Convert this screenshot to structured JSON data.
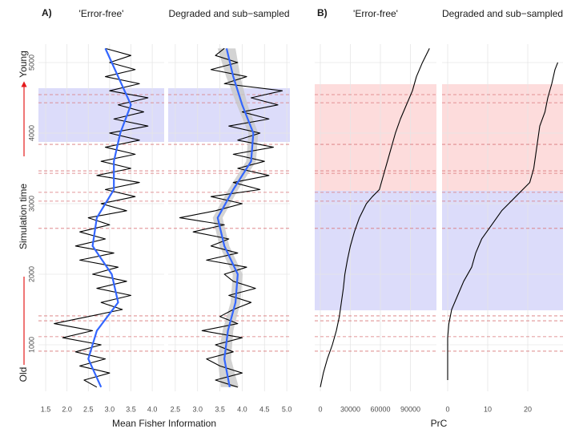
{
  "figure": {
    "panel_labels": [
      "A)",
      "B)"
    ],
    "x_labels": [
      "Mean Fisher Information",
      "PrC"
    ],
    "y_label": "Simulation time",
    "y_top": "Young",
    "y_bottom": "Old"
  },
  "chart_data": [
    {
      "type": "line",
      "title": "'Error-free'",
      "xlim": [
        1.33,
        4.28
      ],
      "xticks": [
        1.5,
        {
          "value": 2,
          "label": "2.0"
        },
        2.5,
        {
          "value": 3,
          "label": "3.0"
        },
        3.5,
        {
          "value": 4,
          "label": "4.0"
        }
      ],
      "ylim": [
        341,
        5261
      ],
      "yticks": [
        1000,
        2000,
        3000,
        4000,
        5000
      ],
      "ytick_labels": true,
      "grid": true,
      "bands": [
        {
          "from": 3875,
          "to": 4636,
          "color": "#dcdcfa"
        }
      ],
      "hlines": {
        "color": "#d9777a",
        "values": [
          4545,
          4430,
          3840,
          3465,
          3430,
          3160,
          3035,
          2650,
          1410,
          1340,
          1115,
          910
        ]
      },
      "series": [
        {
          "color": "#000000",
          "time": [
            400,
            500,
            600,
            700,
            800,
            900,
            1000,
            1100,
            1200,
            1300,
            1400,
            1500,
            1600,
            1700,
            1800,
            1900,
            2000,
            2100,
            2200,
            2300,
            2400,
            2500,
            2600,
            2700,
            2800,
            2900,
            3000,
            3100,
            3200,
            3300,
            3400,
            3500,
            3600,
            3700,
            3800,
            3900,
            4000,
            4100,
            4200,
            4300,
            4400,
            4500,
            4600,
            4700,
            4800,
            4900,
            5000,
            5100,
            5200
          ],
          "values": [
            2.7,
            2.4,
            3.0,
            2.3,
            2.9,
            2.2,
            2.8,
            1.9,
            2.6,
            1.7,
            2.5,
            3.3,
            2.8,
            3.5,
            2.7,
            3.4,
            2.6,
            3.2,
            2.3,
            3.1,
            2.2,
            2.9,
            2.3,
            3.0,
            2.5,
            3.4,
            2.8,
            3.6,
            2.9,
            3.7,
            2.7,
            3.5,
            2.8,
            3.6,
            2.9,
            3.7,
            3.0,
            3.9,
            3.1,
            3.8,
            3.2,
            3.9,
            3.0,
            3.7,
            2.9,
            3.6,
            3.0,
            3.5,
            2.9
          ]
        },
        {
          "color": "#3366ff",
          "time": [
            400,
            800,
            1200,
            1600,
            2000,
            2400,
            2800,
            3200,
            3600,
            4000,
            4400,
            4800,
            5200
          ],
          "values": [
            2.8,
            2.5,
            2.7,
            3.2,
            3.05,
            2.6,
            2.7,
            3.1,
            3.1,
            3.25,
            3.5,
            3.2,
            2.9
          ]
        }
      ]
    },
    {
      "type": "line",
      "title": "Degraded and sub−sampled",
      "xlim": [
        2.34,
        5.07
      ],
      "xticks": [
        2.5,
        {
          "value": 3,
          "label": "3.0"
        },
        3.5,
        {
          "value": 4,
          "label": "4.0"
        },
        4.5,
        {
          "value": 5,
          "label": "5.0"
        }
      ],
      "ylim": [
        341,
        5261
      ],
      "yticks": [
        1000,
        2000,
        3000,
        4000,
        5000
      ],
      "ytick_labels": false,
      "grid": true,
      "bands": [
        {
          "from": 3875,
          "to": 4636,
          "color": "#dcdcfa"
        }
      ],
      "hlines": {
        "color": "#d9777a",
        "values": [
          4545,
          4430,
          3840,
          3465,
          3430,
          3160,
          3035,
          2650,
          1410,
          1340,
          1115,
          910
        ]
      },
      "series": [
        {
          "color": "#c8c8c8",
          "time": [
            400,
            800,
            1200,
            1600,
            2000,
            2400,
            2800,
            3200,
            3600,
            4000,
            4400,
            4800,
            5200
          ],
          "lower": [
            3.52,
            3.45,
            3.56,
            3.74,
            3.79,
            3.49,
            3.34,
            3.69,
            4.09,
            4.14,
            3.88,
            3.64,
            3.45
          ],
          "upper": [
            3.92,
            3.75,
            3.8,
            3.96,
            4.01,
            3.71,
            3.56,
            3.91,
            4.31,
            4.36,
            4.12,
            3.96,
            3.85
          ]
        },
        {
          "color": "#000000",
          "time": [
            400,
            500,
            600,
            700,
            800,
            900,
            1000,
            1100,
            1200,
            1300,
            1400,
            1500,
            1600,
            1700,
            1800,
            1900,
            2000,
            2100,
            2200,
            2300,
            2400,
            2500,
            2600,
            2700,
            2800,
            2900,
            3000,
            3100,
            3200,
            3300,
            3400,
            3500,
            3600,
            3700,
            3800,
            3900,
            4000,
            4100,
            4200,
            4300,
            4400,
            4500,
            4600,
            4700,
            4800,
            4900,
            5000,
            5100,
            5200
          ],
          "values": [
            3.9,
            3.4,
            4.0,
            3.5,
            3.2,
            3.8,
            3.4,
            4.0,
            3.1,
            3.9,
            3.5,
            3.8,
            4.2,
            3.7,
            4.3,
            3.8,
            3.6,
            4.1,
            3.2,
            3.9,
            3.3,
            3.7,
            2.9,
            3.6,
            2.6,
            3.4,
            4.0,
            3.3,
            4.4,
            3.8,
            4.6,
            3.9,
            4.5,
            3.8,
            4.7,
            3.9,
            4.4,
            3.7,
            4.6,
            4.0,
            4.8,
            4.2,
            4.9,
            3.6,
            4.1,
            3.3,
            3.9,
            3.4,
            3.6
          ]
        },
        {
          "color": "#3366ff",
          "time": [
            400,
            800,
            1200,
            1600,
            2000,
            2400,
            2800,
            3200,
            3600,
            4000,
            4400,
            4800,
            5200
          ],
          "values": [
            3.72,
            3.6,
            3.68,
            3.85,
            3.9,
            3.6,
            3.45,
            3.8,
            4.2,
            4.25,
            4.0,
            3.8,
            3.65
          ]
        }
      ]
    },
    {
      "type": "line",
      "title": "'Error-free'",
      "xlim": [
        -5600,
        116000
      ],
      "xticks": [
        0,
        30000,
        60000,
        90000
      ],
      "ylim": [
        341,
        5261
      ],
      "yticks": [
        1000,
        2000,
        3000,
        4000,
        5000
      ],
      "ytick_labels": false,
      "grid": true,
      "bands": [
        {
          "from": 3182,
          "to": 4693,
          "color": "#fddcdc"
        },
        {
          "from": 1489,
          "to": 3182,
          "color": "#dcdcfa"
        }
      ],
      "hlines": {
        "color": "#d9777a",
        "values": [
          4545,
          4430,
          3840,
          3465,
          3430,
          3160,
          3035,
          2650,
          1410,
          1340,
          1115,
          910
        ]
      },
      "series": [
        {
          "color": "#000000",
          "time": [
            400,
            600,
            800,
            1000,
            1200,
            1400,
            1600,
            1800,
            2000,
            2200,
            2400,
            2600,
            2800,
            3000,
            3100,
            3200,
            3400,
            3600,
            3800,
            4000,
            4200,
            4400,
            4600,
            4800,
            5000,
            5200
          ],
          "values": [
            0,
            3000,
            7000,
            12000,
            16000,
            19000,
            21000,
            23000,
            24500,
            27000,
            30000,
            34000,
            39000,
            46000,
            52000,
            59000,
            63000,
            67000,
            71000,
            75000,
            80000,
            86000,
            92000,
            96000,
            102000,
            109000
          ]
        }
      ]
    },
    {
      "type": "line",
      "title": "Degraded and sub−sampled",
      "xlim": [
        -1.4,
        28.8
      ],
      "xticks": [
        0,
        10,
        20
      ],
      "ylim": [
        341,
        5261
      ],
      "yticks": [
        1000,
        2000,
        3000,
        4000,
        5000
      ],
      "ytick_labels": false,
      "grid": true,
      "bands": [
        {
          "from": 3182,
          "to": 4693,
          "color": "#fddcdc"
        },
        {
          "from": 1489,
          "to": 3182,
          "color": "#dcdcfa"
        }
      ],
      "hlines": {
        "color": "#d9777a",
        "values": [
          4545,
          4430,
          3840,
          3465,
          3430,
          3160,
          3035,
          2650,
          1410,
          1340,
          1115,
          910
        ]
      },
      "series": [
        {
          "color": "#000000",
          "time": [
            500,
            700,
            900,
            1100,
            1300,
            1500,
            1700,
            1900,
            2100,
            2300,
            2500,
            2700,
            2900,
            3100,
            3300,
            3500,
            3700,
            3900,
            4100,
            4300,
            4500,
            4700,
            4900,
            5000
          ],
          "values": [
            0,
            0,
            0,
            0,
            0.3,
            1,
            2.5,
            4,
            6,
            7,
            8.5,
            11,
            13.5,
            17,
            20.5,
            21.5,
            22,
            22.5,
            23,
            24.3,
            25,
            26,
            26.8,
            27.5
          ]
        }
      ]
    }
  ]
}
